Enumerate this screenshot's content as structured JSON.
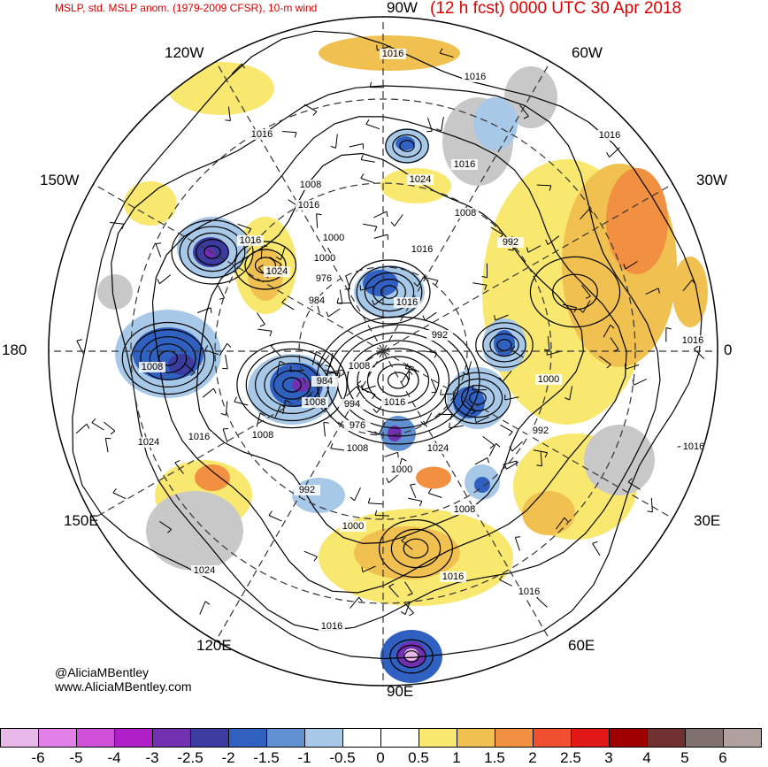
{
  "header": {
    "title": "MSLP, std. MSLP anom. (1979-2009 CFSR), 10-m wind",
    "valid": "(12 h fcst) 0000 UTC 30 Apr 2018"
  },
  "credit": {
    "handle": "@AliciaMBentley",
    "site": "www.AliciaMBentley.com"
  },
  "longitudes": [
    {
      "text": "90W",
      "id": "lon-90w"
    },
    {
      "text": "60W",
      "id": "lon-60w"
    },
    {
      "text": "30W",
      "id": "lon-30w"
    },
    {
      "text": "0",
      "id": "lon-0"
    },
    {
      "text": "30E",
      "id": "lon-30e"
    },
    {
      "text": "60E",
      "id": "lon-60e"
    },
    {
      "text": "90E",
      "id": "lon-90e"
    },
    {
      "text": "120E",
      "id": "lon-120e"
    },
    {
      "text": "150E",
      "id": "lon-150e"
    },
    {
      "text": "180",
      "id": "lon-180"
    },
    {
      "text": "150W",
      "id": "lon-150w"
    },
    {
      "text": "120W",
      "id": "lon-120w"
    }
  ],
  "isobar_labels": [
    "1016",
    "1016",
    "1016",
    "1016",
    "1016",
    "1024",
    "1008",
    "1016",
    "1008",
    "1016",
    "992",
    "1000",
    "1000",
    "1016",
    "1024",
    "976",
    "984",
    "992",
    "1016",
    "1008",
    "1008",
    "984",
    "1008",
    "994",
    "976",
    "1000",
    "992",
    "1024",
    "1016",
    "1008",
    "1016",
    "1024",
    "1008",
    "1000",
    "992",
    "1008",
    "1000",
    "1016",
    "1016",
    "1024",
    "1016",
    "1016",
    "1016"
  ],
  "colorbar": {
    "colors": [
      "#e8b8e8",
      "#e080e8",
      "#d050d8",
      "#b020c8",
      "#7030b0",
      "#3c3ca0",
      "#3060c0",
      "#6090d0",
      "#a8c8e8",
      "#ffffff",
      "#ffffff",
      "#f8e870",
      "#f0c050",
      "#f09040",
      "#f05030",
      "#e01818",
      "#a00000",
      "#703030",
      "#807070",
      "#b0a0a0"
    ],
    "labels": [
      "-6",
      "-5",
      "-4",
      "-3",
      "-2.5",
      "-2",
      "-1.5",
      "-1",
      "-0.5",
      "0",
      "0.5",
      "1",
      "1.5",
      "2",
      "2.5",
      "3",
      "4",
      "5",
      "6"
    ]
  },
  "map_colors": {
    "land_gray": "#c8c8c8",
    "ocean_white": "#ffffff",
    "neg1": "#a8c8e8",
    "neg2": "#6090d0",
    "neg3": "#3060c0",
    "neg4": "#3c3ca0",
    "neg5": "#7030b0",
    "pos1": "#f8e870",
    "pos2": "#f0c050",
    "pos3": "#f09040",
    "pos4": "#f05030"
  }
}
